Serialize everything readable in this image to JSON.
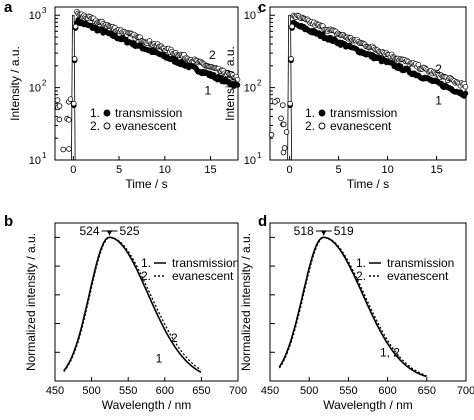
{
  "chart_data": [
    {
      "panel": "a",
      "type": "scatter",
      "xlabel": "Time / s",
      "ylabel": "Intensity / a.u.",
      "xlim": [
        -2,
        18
      ],
      "ylim": [
        10,
        1300
      ],
      "yscale": "log",
      "xticks": [
        0,
        5,
        10,
        15
      ],
      "yticks": [
        {
          "value": 10,
          "base": "10",
          "exp": "1"
        },
        {
          "value": 100,
          "base": "10",
          "exp": "2"
        },
        {
          "value": 1000,
          "base": "10",
          "exp": "3"
        }
      ],
      "series": [
        {
          "id": "1",
          "name": "transmission",
          "marker": "filled-circle",
          "peak": 950,
          "tau": 8.5,
          "offset": 0.92
        },
        {
          "id": "2",
          "name": "evanescent",
          "marker": "open-circle",
          "peak": 1000,
          "tau": 8.5,
          "offset": 1.12
        }
      ],
      "excitation_pulse": {
        "x": 0,
        "width": 0.4
      },
      "annotations": [
        {
          "text": "2",
          "x": 15.2,
          "y": 250
        },
        {
          "text": "1",
          "x": 14.7,
          "y": 80
        }
      ],
      "legend": [
        "1.",
        "2."
      ]
    },
    {
      "panel": "c",
      "type": "scatter",
      "xlabel": "Time / s",
      "ylabel": "Intensity / a.u.",
      "xlim": [
        -2,
        18
      ],
      "ylim": [
        10,
        1300
      ],
      "yscale": "log",
      "xticks": [
        0,
        5,
        10,
        15
      ],
      "yticks": [
        {
          "value": 10,
          "base": "10",
          "exp": "1"
        },
        {
          "value": 100,
          "base": "10",
          "exp": "2"
        },
        {
          "value": 1000,
          "base": "10",
          "exp": "3"
        }
      ],
      "series": [
        {
          "id": "1",
          "name": "transmission",
          "marker": "filled-circle",
          "peak": 870,
          "tau": 7.8,
          "offset": 0.92
        },
        {
          "id": "2",
          "name": "evanescent",
          "marker": "open-circle",
          "peak": 940,
          "tau": 7.8,
          "offset": 1.12
        }
      ],
      "excitation_pulse": {
        "x": 0,
        "width": 0.4
      },
      "annotations": [
        {
          "text": "2",
          "x": 15.2,
          "y": 160
        },
        {
          "text": "1",
          "x": 15.2,
          "y": 58
        }
      ],
      "legend": [
        "1.",
        "2."
      ]
    },
    {
      "panel": "b",
      "type": "line",
      "xlabel": "Wavelength / nm",
      "ylabel": "Normalized intensity / a.u.",
      "xlim": [
        450,
        700
      ],
      "ylim": [
        0,
        1.1
      ],
      "xticks": [
        450,
        500,
        550,
        600,
        650,
        700
      ],
      "yticks_unlabeled": [
        0,
        0.2,
        0.4,
        0.6,
        0.8,
        1.0
      ],
      "series": [
        {
          "id": "1",
          "name": "transmission",
          "style": "solid",
          "peak_nm": 524,
          "sigma_left": 27,
          "sigma_right": 53
        },
        {
          "id": "2",
          "name": "evanescent",
          "style": "dotted",
          "peak_nm": 525,
          "sigma_left": 27,
          "sigma_right": 55
        }
      ],
      "peak_labels": [
        "524",
        "525"
      ],
      "annotations": [
        {
          "text": "2",
          "x": 613,
          "y": 0.27
        },
        {
          "text": "1",
          "x": 592,
          "y": 0.13
        }
      ],
      "legend": [
        "1.",
        "2."
      ]
    },
    {
      "panel": "d",
      "type": "line",
      "xlabel": "Wavelength / nm",
      "ylabel": "Normalized intensity / a.u.",
      "xlim": [
        450,
        700
      ],
      "ylim": [
        0,
        1.1
      ],
      "xticks": [
        450,
        500,
        550,
        600,
        650,
        700
      ],
      "yticks_unlabeled": [
        0,
        0.2,
        0.4,
        0.6,
        0.8,
        1.0
      ],
      "series": [
        {
          "id": "1",
          "name": "transmission",
          "style": "solid",
          "peak_nm": 518,
          "sigma_left": 26,
          "sigma_right": 50
        },
        {
          "id": "2",
          "name": "evanescent",
          "style": "dotted",
          "peak_nm": 519,
          "sigma_left": 26,
          "sigma_right": 51
        }
      ],
      "peak_labels": [
        "518",
        "519"
      ],
      "annotations": [
        {
          "text": "1, 2",
          "x": 603,
          "y": 0.17
        }
      ],
      "legend": [
        "1.",
        "2."
      ]
    }
  ]
}
